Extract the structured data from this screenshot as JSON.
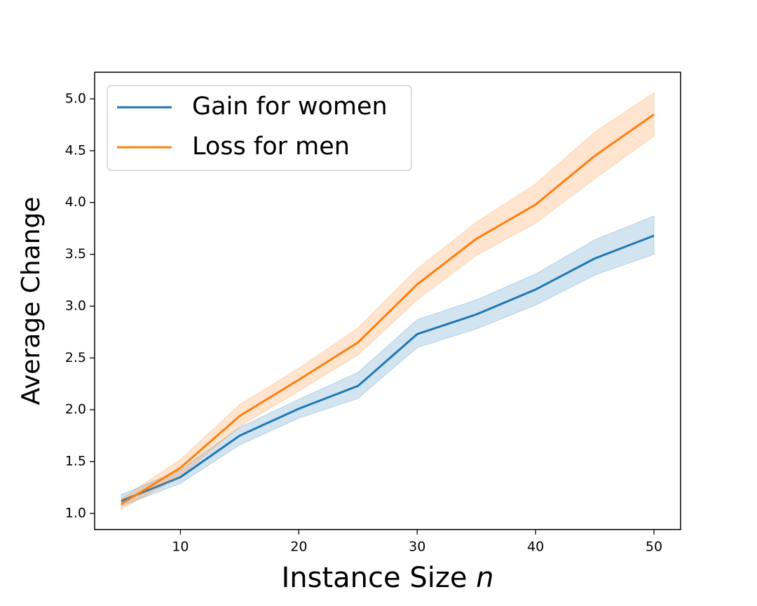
{
  "chart_data": {
    "type": "line",
    "x_label": "Instance Size",
    "x_label_variable": "n",
    "y_label": "Average Change",
    "x": [
      5,
      10,
      15,
      20,
      25,
      30,
      35,
      40,
      45,
      50
    ],
    "series": [
      {
        "name": "Gain for women",
        "color": "#1f77b4",
        "values": [
          1.12,
          1.35,
          1.75,
          2.01,
          2.23,
          2.73,
          2.92,
          3.16,
          3.46,
          3.68
        ],
        "lower": [
          1.07,
          1.29,
          1.66,
          1.92,
          2.11,
          2.6,
          2.78,
          3.01,
          3.3,
          3.5
        ],
        "upper": [
          1.18,
          1.42,
          1.83,
          2.1,
          2.36,
          2.87,
          3.06,
          3.31,
          3.64,
          3.87
        ]
      },
      {
        "name": "Loss for men",
        "color": "#ff7f0e",
        "values": [
          1.09,
          1.44,
          1.94,
          2.29,
          2.65,
          3.21,
          3.65,
          3.98,
          4.45,
          4.85
        ],
        "lower": [
          1.04,
          1.36,
          1.84,
          2.18,
          2.53,
          3.06,
          3.49,
          3.8,
          4.23,
          4.64
        ],
        "upper": [
          1.14,
          1.52,
          2.05,
          2.4,
          2.79,
          3.36,
          3.81,
          4.18,
          4.68,
          5.06
        ]
      }
    ],
    "xlim": [
      2.75,
      52.25
    ],
    "ylim": [
      0.844,
      5.257
    ],
    "xticks": [
      10,
      20,
      30,
      40,
      50
    ],
    "yticks": [
      {
        "value": 1,
        "label": "1.0"
      },
      1.5,
      {
        "value": 2,
        "label": "2.0"
      },
      2.5,
      {
        "value": 3,
        "label": "3.0"
      },
      3.5,
      {
        "value": 4,
        "label": "4.0"
      },
      4.5,
      {
        "value": 5,
        "label": "5.0"
      }
    ],
    "legend": "upper left"
  }
}
